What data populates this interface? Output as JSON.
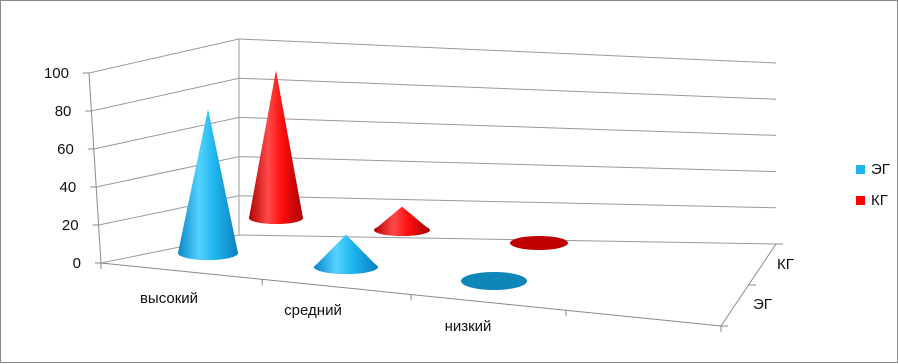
{
  "chart_data": {
    "type": "bar",
    "subtype": "3d-cone",
    "categories": [
      "высокий",
      "средний",
      "низкий"
    ],
    "series": [
      {
        "name": "ЭГ",
        "values": [
          80,
          18,
          0
        ],
        "color": "#1fb6ef"
      },
      {
        "name": "КГ",
        "values": [
          82,
          13,
          0
        ],
        "color": "#ff0000"
      }
    ],
    "depth_labels": [
      "КГ",
      "ЭГ"
    ],
    "yticks": [
      "0",
      "20",
      "40",
      "60",
      "80",
      "100"
    ],
    "ylim": [
      0,
      100
    ],
    "grid": true,
    "legend": "right"
  }
}
